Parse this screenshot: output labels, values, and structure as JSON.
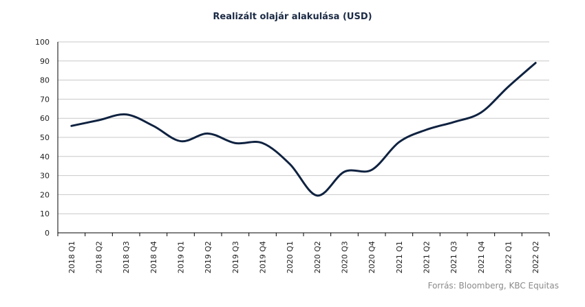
{
  "chart_data": {
    "type": "line",
    "title": "Realizált olajár alakulása (USD)",
    "xlabel": "",
    "ylabel": "",
    "categories": [
      "2018 Q1",
      "2018 Q2",
      "2018 Q3",
      "2018 Q4",
      "2019 Q1",
      "2019 Q2",
      "2019 Q3",
      "2019 Q4",
      "2020 Q1",
      "2020 Q2",
      "2020 Q3",
      "2020 Q4",
      "2021 Q1",
      "2021 Q2",
      "2021 Q3",
      "2021 Q4",
      "2022 Q1",
      "2022 Q2"
    ],
    "series": [
      {
        "values": [
          56,
          59,
          62,
          56,
          48,
          52,
          47,
          47,
          36,
          19.5,
          32,
          33,
          47.5,
          54,
          58,
          63,
          76.5,
          89
        ]
      }
    ],
    "ylim": [
      0,
      100
    ],
    "yticks": [
      0,
      10,
      20,
      30,
      40,
      50,
      60,
      70,
      80,
      90,
      100
    ],
    "grid": true,
    "line_color": "#0f2240",
    "grid_color": "#c8c8c8"
  },
  "source": "Forrás: Bloomberg, KBC Equitas"
}
